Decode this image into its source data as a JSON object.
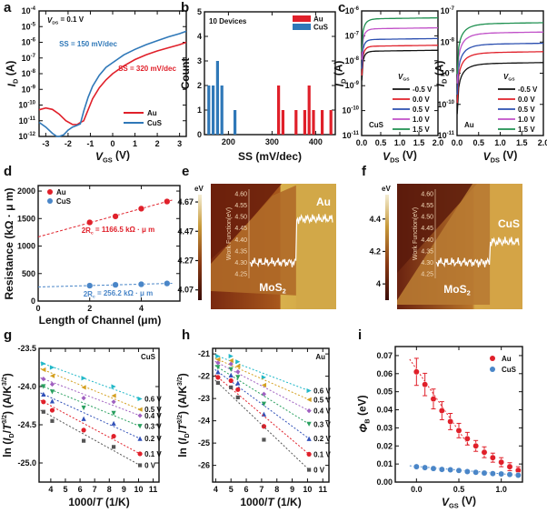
{
  "chart_data": [
    {
      "id": "a",
      "panel_label": "a",
      "type": "line",
      "yscale": "log",
      "annotation": "V_DS = 0.1 V",
      "annotation_parts": {
        "main": "V",
        "sub": "DS",
        "rest": " = 0.1 V"
      },
      "xlabel": {
        "main": "V",
        "sub": "GS",
        "rest": " (V)"
      },
      "ylabel": {
        "main": "I",
        "sub": "D",
        "rest": " (A)"
      },
      "xlim": [
        -3.3,
        3.3
      ],
      "ylim_exp": [
        -12,
        -4
      ],
      "xticks": [
        -3,
        -2,
        -1,
        0,
        1,
        2,
        3
      ],
      "yticks_exp": [
        -12,
        -11,
        -10,
        -9,
        -8,
        -7,
        -6,
        -5,
        -4
      ],
      "tick_base": "10",
      "legend_position": "bottom-right",
      "series": [
        {
          "name": "Au",
          "color": "#e0202a",
          "x": [
            -3.3,
            -3.0,
            -2.7,
            -2.4,
            -2.1,
            -1.8,
            -1.6,
            -1.45,
            -1.3,
            -1.1,
            -0.9,
            -0.6,
            -0.3,
            0,
            0.5,
            1,
            1.5,
            2,
            2.5,
            3.0,
            3.3
          ],
          "y_log10": [
            -10.3,
            -10.4,
            -10.5,
            -10.6,
            -10.8,
            -11.0,
            -11.2,
            -11.3,
            -11.0,
            -10.3,
            -9.6,
            -8.9,
            -8.4,
            -8.0,
            -7.5,
            -7.1,
            -6.8,
            -6.55,
            -6.35,
            -6.15,
            -6.0
          ],
          "annotation": "SS = 320 mV/dec"
        },
        {
          "name": "CuS",
          "color": "#2f78b8",
          "x": [
            -3.3,
            -3.0,
            -2.7,
            -2.5,
            -2.4,
            -2.2,
            -2.0,
            -1.8,
            -1.6,
            -1.45,
            -1.3,
            -1.1,
            -0.9,
            -0.6,
            -0.3,
            0,
            0.5,
            1,
            1.5,
            2,
            2.5,
            3.0,
            3.3
          ],
          "y_log10": [
            -11.1,
            -11.4,
            -11.8,
            -12.0,
            -12.0,
            -11.9,
            -11.6,
            -11.4,
            -11.3,
            -11.2,
            -10.4,
            -9.5,
            -8.8,
            -8.1,
            -7.6,
            -7.3,
            -6.8,
            -6.45,
            -6.15,
            -5.9,
            -5.65,
            -5.45,
            -5.3
          ],
          "annotation": "SS = 150 mV/dec"
        }
      ]
    },
    {
      "id": "b",
      "panel_label": "b",
      "type": "bar",
      "title": "10 Devices",
      "xlabel": "SS (mV/dec)",
      "ylabel": "Count",
      "xlim": [
        145,
        445
      ],
      "ylim": [
        0,
        5
      ],
      "xticks": [
        200,
        300,
        400
      ],
      "yticks": [
        0,
        1,
        2,
        3,
        4,
        5
      ],
      "legend_position": "top-right",
      "series": [
        {
          "name": "Au",
          "color": "#e0202a",
          "x": [
            315,
            325,
            355,
            375,
            385,
            395,
            415,
            435
          ],
          "values": [
            2,
            1,
            1,
            1,
            2,
            1,
            1,
            1
          ]
        },
        {
          "name": "CuS",
          "color": "#2f78b8",
          "x": [
            155,
            165,
            175,
            185,
            215
          ],
          "values": [
            2,
            2,
            3,
            2,
            1
          ]
        }
      ]
    },
    {
      "id": "c1",
      "panel_label": "c",
      "type": "line",
      "yscale": "log",
      "inset_label": "CuS",
      "xlabel": {
        "main": "V",
        "sub": "DS",
        "rest": " (V)"
      },
      "ylabel": {
        "main": "I",
        "sub": "D",
        "rest": " (A)"
      },
      "xlim": [
        0,
        2
      ],
      "ylim_exp": [
        -11,
        -6
      ],
      "xticks": [
        0,
        0.5,
        1.0,
        1.5,
        2.0
      ],
      "xtick_labels": [
        "0.0",
        "0.5",
        "1.0",
        "1.5",
        "2.0"
      ],
      "yticks_exp": [
        -11,
        -10,
        -9,
        -8,
        -7,
        -6
      ],
      "tick_base": "10",
      "legend_title": {
        "main": "V",
        "sub": "GS"
      },
      "legend_position": "bottom-right",
      "series": [
        {
          "name": "-0.5 V",
          "color": "#111111",
          "sat_log10": -7.62,
          "k": 14
        },
        {
          "name": "0.0 V",
          "color": "#e0202a",
          "sat_log10": -7.42,
          "k": 14
        },
        {
          "name": "0.5 V",
          "color": "#2b4fb0",
          "sat_log10": -7.15,
          "k": 14
        },
        {
          "name": "1.0 V",
          "color": "#c050c8",
          "sat_log10": -6.72,
          "k": 12
        },
        {
          "name": "1.5 V",
          "color": "#1f9050",
          "sat_log10": -6.32,
          "k": 10
        }
      ]
    },
    {
      "id": "c2",
      "panel_label": "",
      "type": "line",
      "yscale": "log",
      "inset_label": "Au",
      "xlabel": {
        "main": "V",
        "sub": "DS",
        "rest": " (V)"
      },
      "ylabel": {
        "main": "I",
        "sub": "D",
        "rest": " (A)"
      },
      "xlim": [
        0,
        2
      ],
      "ylim_exp": [
        -11,
        -7
      ],
      "xticks": [
        0,
        0.5,
        1.0,
        1.5,
        2.0
      ],
      "xtick_labels": [
        "0.0",
        "0.5",
        "1.0",
        "1.5",
        "2.0"
      ],
      "yticks_exp": [
        -11,
        -10,
        -9,
        -8,
        -7
      ],
      "tick_base": "10",
      "legend_title": {
        "main": "V",
        "sub": "GS"
      },
      "legend_position": "bottom-right",
      "series": [
        {
          "name": "-0.5 V",
          "color": "#111111",
          "sat_log10": -8.7,
          "k": 5
        },
        {
          "name": "0.0 V",
          "color": "#e0202a",
          "sat_log10": -8.35,
          "k": 5
        },
        {
          "name": "0.5 V",
          "color": "#2b4fb0",
          "sat_log10": -8.08,
          "k": 5
        },
        {
          "name": "1.0 V",
          "color": "#c050c8",
          "sat_log10": -7.72,
          "k": 5
        },
        {
          "name": "1.5 V",
          "color": "#1f9050",
          "sat_log10": -7.42,
          "k": 5
        }
      ]
    },
    {
      "id": "d",
      "panel_label": "d",
      "type": "scatter",
      "xlabel": "Length of Channel (μm)",
      "ylabel": "Resistance (kΩ · μ m)",
      "xlim": [
        0,
        5.5
      ],
      "ylim": [
        0,
        2100
      ],
      "xticks": [
        0,
        2,
        4
      ],
      "yticks": [
        0,
        500,
        1000,
        1500,
        2000
      ],
      "legend_position": "top-left",
      "series": [
        {
          "name": "Au",
          "color": "#e0202a",
          "x": [
            2,
            3,
            4,
            5
          ],
          "y": [
            1430,
            1540,
            1680,
            1810
          ],
          "fit_intercept": 1166.5,
          "fit_label": "2R  = 1166.5 kΩ · μ m",
          "fit_main": "2R",
          "fit_sub": "c",
          "fit_rest": " = 1166.5 kΩ · μ m"
        },
        {
          "name": "CuS",
          "color": "#4a86c8",
          "x": [
            2,
            3,
            4,
            5
          ],
          "y": [
            280,
            295,
            305,
            320
          ],
          "fit_intercept": 256.2,
          "fit_label": "2R  = 256.2 kΩ · μ m",
          "fit_main": "2R",
          "fit_sub": "c",
          "fit_rest": " = 256.2 kΩ · μ m"
        }
      ]
    },
    {
      "id": "e",
      "panel_label": "e",
      "type": "line",
      "description": "KPFM map with work-function line profile",
      "colorbar": {
        "unit": "eV",
        "ticks": [
          "4.67",
          "4.47",
          "4.27",
          "4.07"
        ],
        "tick_values": [
          4.67,
          4.47,
          4.27,
          4.07
        ],
        "range": [
          4.0,
          4.72
        ]
      },
      "profile_axis": {
        "label": "Work Function(eV)",
        "ticks": [
          "4.60",
          "4.55",
          "4.50",
          "4.45",
          "4.40",
          "4.35",
          "4.30",
          "4.25"
        ],
        "range": [
          4.23,
          4.62
        ]
      },
      "region_labels": {
        "left_main": "MoS",
        "left_sub": "2",
        "right": "Au"
      },
      "profile": {
        "left_level": 4.3,
        "right_level": 4.49,
        "step_fraction": 0.47
      }
    },
    {
      "id": "f",
      "panel_label": "f",
      "type": "line",
      "description": "KPFM map with work-function line profile",
      "colorbar": {
        "unit": "eV",
        "ticks": [
          "4.4",
          "4.2",
          "4"
        ],
        "tick_values": [
          4.4,
          4.2,
          4.0
        ],
        "range": [
          3.9,
          4.55
        ]
      },
      "profile_axis": {
        "label": "Work Function(eV)",
        "ticks": [
          "4.60",
          "4.55",
          "4.50",
          "4.45",
          "4.40",
          "4.35",
          "4.30",
          "4.25"
        ],
        "range": [
          4.23,
          4.62
        ]
      },
      "region_labels": {
        "left_main": "MoS",
        "left_sub": "2",
        "right": "CuS"
      },
      "profile": {
        "left_level": 4.3,
        "right_level": 4.39,
        "step_fraction": 0.48
      }
    },
    {
      "id": "g",
      "panel_label": "g",
      "type": "scatter",
      "inset_label": "CuS",
      "xlabel": {
        "main": "1000/",
        "ital": "T",
        "rest": " (1/K)"
      },
      "ylabel": "ln (I_D/T^3/2) (A/K^3/2)",
      "xlim": [
        3.2,
        11.4
      ],
      "ylim": [
        -25.25,
        -23.5
      ],
      "xticks": [
        4,
        5,
        6,
        7,
        8,
        9,
        10,
        11
      ],
      "yticks": [
        -25.0,
        -24.5,
        -24.0,
        -23.5
      ],
      "ytick_labels": [
        "-25.0",
        "-24.5",
        "-24.0",
        "-23.5"
      ],
      "x": [
        3.5,
        4.1,
        6.25,
        8.3,
        10.1
      ],
      "series": [
        {
          "name": "0.6 V",
          "color": "#22b8c8",
          "marker": "tri-right",
          "y": [
            -23.7,
            -23.75,
            -23.89,
            -24.0,
            -24.16
          ]
        },
        {
          "name": "0.5 V",
          "color": "#d4a020",
          "marker": "tri-left",
          "y": [
            -23.78,
            -23.86,
            -24.01,
            -24.12,
            -24.3
          ]
        },
        {
          "name": "0.4 V",
          "color": "#a060c0",
          "marker": "diamond",
          "y": [
            -23.9,
            -23.97,
            -24.15,
            -24.2,
            -24.38
          ]
        },
        {
          "name": "0.3 V",
          "color": "#2aa060",
          "marker": "tri-down",
          "y": [
            -24.0,
            -24.07,
            -24.28,
            -24.35,
            -24.52
          ]
        },
        {
          "name": "0.2 V",
          "color": "#3050b8",
          "marker": "tri-up",
          "y": [
            -24.1,
            -24.19,
            -24.42,
            -24.48,
            -24.68
          ]
        },
        {
          "name": "0.1 V",
          "color": "#e0202a",
          "marker": "circle",
          "y": [
            -24.2,
            -24.31,
            -24.57,
            -24.65,
            -24.88
          ]
        },
        {
          "name": "0 V",
          "color": "#555555",
          "marker": "square",
          "y": [
            -24.33,
            -24.45,
            -24.71,
            -24.79,
            -25.03
          ]
        }
      ]
    },
    {
      "id": "h",
      "panel_label": "h",
      "type": "scatter",
      "inset_label": "Au",
      "xlabel": {
        "main": "1000/",
        "ital": "T",
        "rest": " (1/K)"
      },
      "ylabel": "ln (I_D/T^3/2) (A/K^3/2)",
      "xlim": [
        3.8,
        11.4
      ],
      "ylim": [
        -26.75,
        -20.75
      ],
      "xticks": [
        4,
        5,
        6,
        7,
        8,
        9,
        10,
        11
      ],
      "yticks": [
        -26,
        -25,
        -24,
        -23,
        -22,
        -21
      ],
      "ytick_labels": [
        "-26",
        "-25",
        "-24",
        "-23",
        "-22",
        "-21"
      ],
      "x": [
        4.15,
        5.0,
        5.45,
        7.15,
        10.1
      ],
      "series": [
        {
          "name": "0.6 V",
          "color": "#22b8c8",
          "marker": "tri-right",
          "y": [
            -21.1,
            -21.1,
            -21.35,
            -22.05,
            -22.65
          ]
        },
        {
          "name": "0.5 V",
          "color": "#d4a020",
          "marker": "tri-left",
          "y": [
            -21.25,
            -21.3,
            -21.55,
            -22.4,
            -23.05
          ]
        },
        {
          "name": "0.4 V",
          "color": "#a060c0",
          "marker": "diamond",
          "y": [
            -21.4,
            -21.45,
            -21.8,
            -22.8,
            -23.55
          ]
        },
        {
          "name": "0.3 V",
          "color": "#2aa060",
          "marker": "tri-down",
          "y": [
            -21.6,
            -21.7,
            -22.05,
            -23.25,
            -24.15
          ]
        },
        {
          "name": "0.2 V",
          "color": "#3050b8",
          "marker": "tri-up",
          "y": [
            -21.8,
            -21.95,
            -22.3,
            -23.7,
            -24.8
          ]
        },
        {
          "name": "0.1 V",
          "color": "#e0202a",
          "marker": "circle",
          "y": [
            -22.05,
            -22.2,
            -22.6,
            -24.25,
            -25.5
          ]
        },
        {
          "name": "0 V",
          "color": "#555555",
          "marker": "square",
          "y": [
            -22.3,
            -22.5,
            -22.95,
            -24.85,
            -26.2
          ]
        }
      ]
    },
    {
      "id": "i",
      "panel_label": "i",
      "type": "scatter",
      "xlabel": {
        "main": "V",
        "sub": "GS",
        "rest": " (V)"
      },
      "ylabel": {
        "main": "Φ",
        "sub": "B",
        "rest": " (eV)"
      },
      "xlim": [
        -0.25,
        1.25
      ],
      "ylim": [
        0,
        0.075
      ],
      "xticks": [
        0.0,
        0.5,
        1.0
      ],
      "xtick_labels": [
        "0.0",
        "0.5",
        "1.0"
      ],
      "yticks": [
        0,
        0.01,
        0.02,
        0.03,
        0.04,
        0.05,
        0.06,
        0.07
      ],
      "ytick_labels": [
        "0.00",
        "0.01",
        "0.02",
        "0.03",
        "0.04",
        "0.05",
        "0.06",
        "0.07"
      ],
      "legend_position": "top-right",
      "series": [
        {
          "name": "Au",
          "color": "#e0202a",
          "x": [
            0,
            0.1,
            0.2,
            0.3,
            0.4,
            0.5,
            0.6,
            0.7,
            0.8,
            0.9,
            1.0,
            1.1,
            1.2
          ],
          "y": [
            0.061,
            0.054,
            0.046,
            0.0395,
            0.0335,
            0.0285,
            0.024,
            0.02,
            0.0165,
            0.0135,
            0.011,
            0.0085,
            0.0065
          ],
          "err": [
            0.0075,
            0.0062,
            0.0055,
            0.005,
            0.0045,
            0.004,
            0.0035,
            0.003,
            0.003,
            0.0025,
            0.0025,
            0.0022,
            0.002
          ],
          "fit_x": [
            -0.08,
            0.62
          ],
          "fit_y": [
            0.068,
            0.02
          ]
        },
        {
          "name": "CuS",
          "color": "#4a86c8",
          "x": [
            0,
            0.1,
            0.2,
            0.3,
            0.4,
            0.5,
            0.6,
            0.7,
            0.8,
            0.9,
            1.0,
            1.1,
            1.2
          ],
          "y": [
            0.0085,
            0.008,
            0.0075,
            0.007,
            0.0068,
            0.0064,
            0.0058,
            0.0054,
            0.005,
            0.0047,
            0.0045,
            0.0042,
            0.0038
          ],
          "fit_x": [
            -0.08,
            1.2
          ],
          "fit_y": [
            0.009,
            0.0038
          ]
        }
      ]
    }
  ]
}
